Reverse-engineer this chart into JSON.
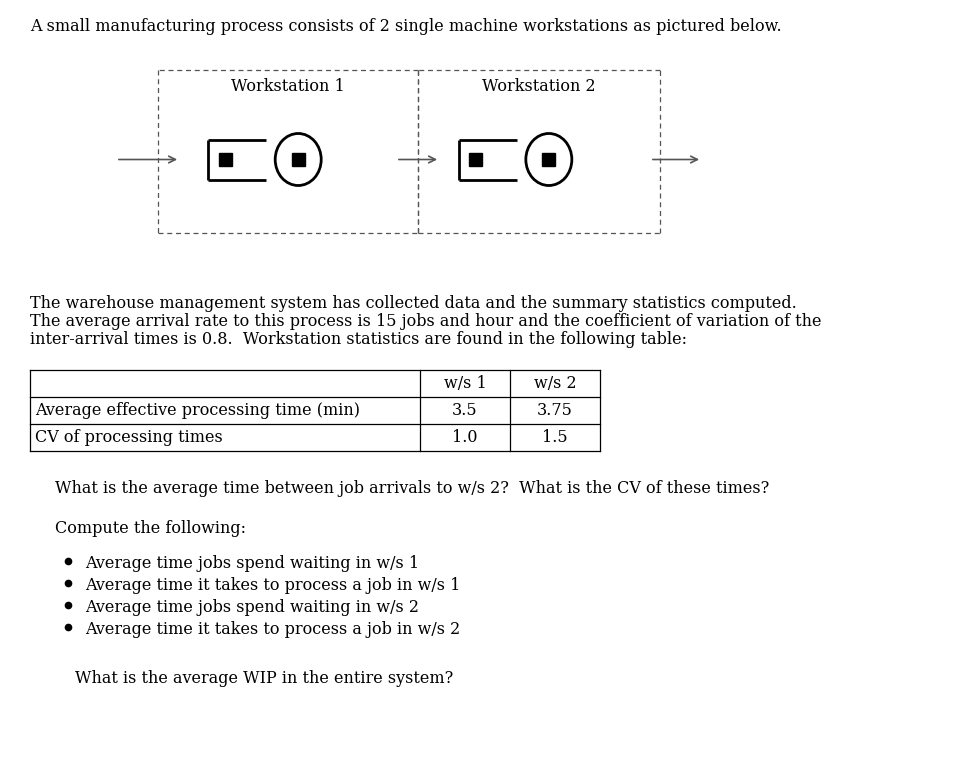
{
  "title_text": "A small manufacturing process consists of 2 single machine workstations as pictured below.",
  "ws1_label": "Workstation 1",
  "ws2_label": "Workstation 2",
  "para_line1": "The warehouse management system has collected data and the summary statistics computed.",
  "para_line2": "The average arrival rate to this process is 15 jobs and hour and the coefficient of variation of the",
  "para_line3": "inter-arrival times is 0.8.  Workstation statistics are found in the following table:",
  "table_headers": [
    "",
    "w/s 1",
    "w/s 2"
  ],
  "table_row1_label": "Average effective processing time (min)",
  "table_row2_label": "CV of processing times",
  "table_ws1_row1": "3.5",
  "table_ws1_row2": "1.0",
  "table_ws2_row1": "3.75",
  "table_ws2_row2": "1.5",
  "question1": "What is the average time between job arrivals to w/s 2?  What is the CV of these times?",
  "compute_header": "Compute the following:",
  "bullet_items": [
    "Average time jobs spend waiting in w/s 1",
    "Average time it takes to process a job in w/s 1",
    "Average time jobs spend waiting in w/s 2",
    "Average time it takes to process a job in w/s 2"
  ],
  "final_question": "What is the average WIP in the entire system?",
  "bg_color": "#ffffff",
  "text_color": "#000000",
  "font_size_body": 11.5,
  "font_size_diagram": 11.5
}
